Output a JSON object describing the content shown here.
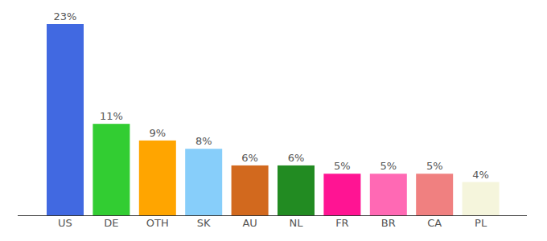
{
  "chart_data": {
    "type": "bar",
    "categories": [
      "US",
      "DE",
      "OTH",
      "SK",
      "AU",
      "NL",
      "FR",
      "BR",
      "CA",
      "PL"
    ],
    "values": [
      23,
      11,
      9,
      8,
      6,
      6,
      5,
      5,
      5,
      4
    ],
    "value_labels": [
      "23%",
      "11%",
      "9%",
      "8%",
      "6%",
      "6%",
      "5%",
      "5%",
      "5%",
      "4%"
    ],
    "colors": [
      "#4169e1",
      "#32cd32",
      "#ffa500",
      "#87cefa",
      "#d2691e",
      "#228b22",
      "#ff1493",
      "#ff69b4",
      "#f08080",
      "#f5f5dc"
    ],
    "ylim": [
      0,
      23
    ],
    "data_labels": true,
    "tick_labels": "x",
    "grid": false
  }
}
